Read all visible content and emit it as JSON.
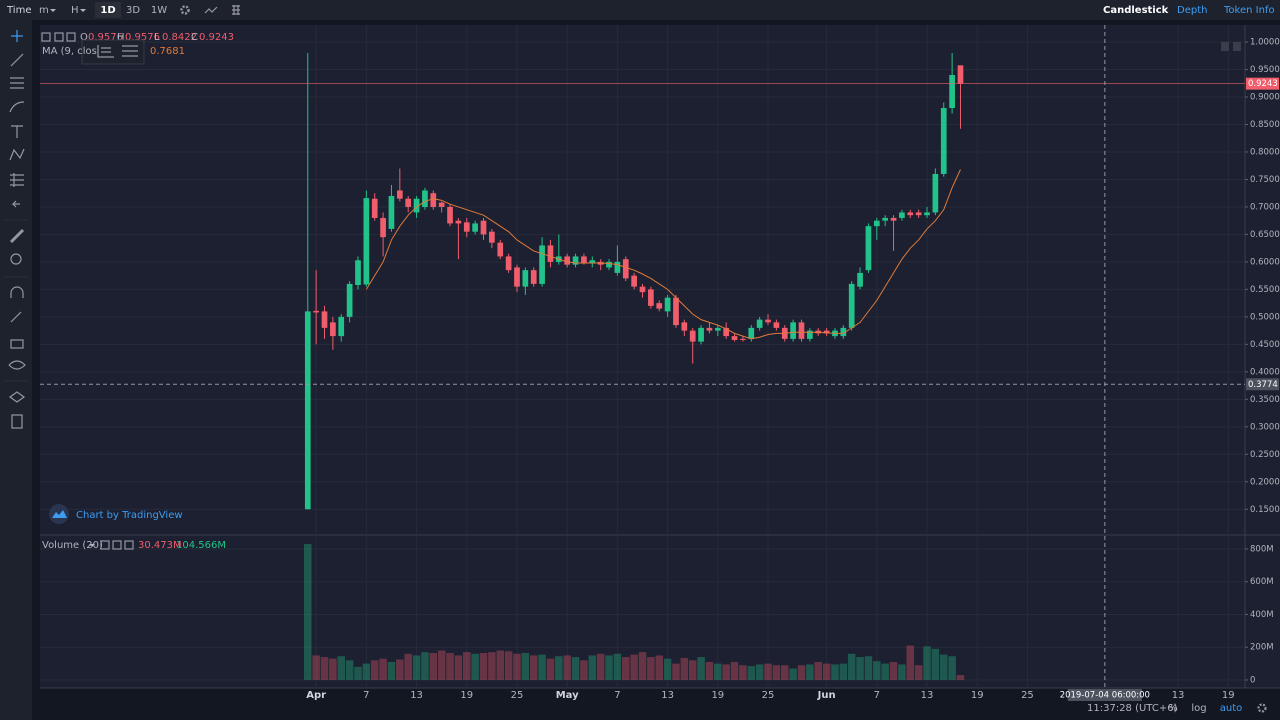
{
  "toolbar": {
    "items": [
      "Time",
      "m",
      "H",
      "1D",
      "3D",
      "1W"
    ],
    "tabs": [
      "Candlestick",
      "Depth",
      "Token Info"
    ]
  },
  "status": {
    "time": "11:37:28 (UTC+6)",
    "buttons": [
      "%",
      "log",
      "auto"
    ]
  },
  "watermark": "Chart by TradingView",
  "chart_data": [
    {
      "type": "candlestick",
      "ohlc_labels": [
        "O",
        "H",
        "L",
        "C"
      ],
      "up_color": "#22c38a",
      "down_color": "#f05d6c",
      "x": [
        "2019-03-31",
        "2019-04-01",
        "2019-04-02",
        "2019-04-03",
        "2019-04-04",
        "2019-04-05",
        "2019-04-06",
        "2019-04-07",
        "2019-04-08",
        "2019-04-09",
        "2019-04-10",
        "2019-04-11",
        "2019-04-12",
        "2019-04-13",
        "2019-04-14",
        "2019-04-15",
        "2019-04-16",
        "2019-04-17",
        "2019-04-18",
        "2019-04-19",
        "2019-04-20",
        "2019-04-21",
        "2019-04-22",
        "2019-04-23",
        "2019-04-24",
        "2019-04-25",
        "2019-04-26",
        "2019-04-27",
        "2019-04-28",
        "2019-04-29",
        "2019-04-30",
        "2019-05-01",
        "2019-05-02",
        "2019-05-03",
        "2019-05-04",
        "2019-05-05",
        "2019-05-06",
        "2019-05-07",
        "2019-05-08",
        "2019-05-09",
        "2019-05-10",
        "2019-05-11",
        "2019-05-12",
        "2019-05-13",
        "2019-05-14",
        "2019-05-15",
        "2019-05-16",
        "2019-05-17",
        "2019-05-18",
        "2019-05-19",
        "2019-05-20",
        "2019-05-21",
        "2019-05-22",
        "2019-05-23",
        "2019-05-24",
        "2019-05-25",
        "2019-05-26",
        "2019-05-27",
        "2019-05-28",
        "2019-05-29",
        "2019-05-30",
        "2019-05-31",
        "2019-06-01",
        "2019-06-02",
        "2019-06-03",
        "2019-06-04",
        "2019-06-05",
        "2019-06-06",
        "2019-06-07",
        "2019-06-08",
        "2019-06-09",
        "2019-06-10",
        "2019-06-11",
        "2019-06-12",
        "2019-06-13",
        "2019-06-14",
        "2019-06-15",
        "2019-06-16",
        "2019-06-17"
      ],
      "open": [
        0.15,
        0.511,
        0.51,
        0.49,
        0.465,
        0.5,
        0.558,
        0.559,
        0.715,
        0.68,
        0.66,
        0.73,
        0.715,
        0.69,
        0.7,
        0.725,
        0.708,
        0.7,
        0.675,
        0.672,
        0.655,
        0.675,
        0.655,
        0.635,
        0.61,
        0.59,
        0.555,
        0.585,
        0.56,
        0.63,
        0.6,
        0.61,
        0.595,
        0.61,
        0.597,
        0.6,
        0.59,
        0.58,
        0.605,
        0.575,
        0.555,
        0.55,
        0.525,
        0.51,
        0.535,
        0.49,
        0.475,
        0.455,
        0.48,
        0.475,
        0.48,
        0.465,
        0.46,
        0.46,
        0.48,
        0.495,
        0.49,
        0.48,
        0.46,
        0.49,
        0.46,
        0.475,
        0.475,
        0.465,
        0.465,
        0.48,
        0.555,
        0.585,
        0.665,
        0.675,
        0.68,
        0.68,
        0.69,
        0.69,
        0.685,
        0.69,
        0.76,
        0.88,
        0.9576
      ],
      "high": [
        0.98,
        0.585,
        0.52,
        0.5,
        0.505,
        0.565,
        0.61,
        0.73,
        0.725,
        0.69,
        0.74,
        0.77,
        0.72,
        0.72,
        0.735,
        0.73,
        0.71,
        0.705,
        0.68,
        0.68,
        0.675,
        0.68,
        0.66,
        0.64,
        0.615,
        0.595,
        0.59,
        0.59,
        0.645,
        0.64,
        0.65,
        0.615,
        0.615,
        0.615,
        0.61,
        0.605,
        0.605,
        0.63,
        0.61,
        0.58,
        0.56,
        0.555,
        0.53,
        0.54,
        0.54,
        0.495,
        0.48,
        0.485,
        0.49,
        0.485,
        0.49,
        0.47,
        0.465,
        0.485,
        0.5,
        0.505,
        0.495,
        0.485,
        0.495,
        0.495,
        0.48,
        0.48,
        0.48,
        0.48,
        0.485,
        0.565,
        0.59,
        0.67,
        0.68,
        0.685,
        0.685,
        0.695,
        0.695,
        0.695,
        0.7,
        0.77,
        0.89,
        0.98,
        0.9576
      ],
      "low": [
        0.15,
        0.45,
        0.46,
        0.44,
        0.455,
        0.49,
        0.55,
        0.555,
        0.675,
        0.61,
        0.655,
        0.71,
        0.69,
        0.68,
        0.695,
        0.695,
        0.69,
        0.665,
        0.605,
        0.645,
        0.65,
        0.64,
        0.625,
        0.605,
        0.58,
        0.545,
        0.54,
        0.555,
        0.555,
        0.59,
        0.595,
        0.59,
        0.59,
        0.595,
        0.59,
        0.585,
        0.585,
        0.575,
        0.565,
        0.55,
        0.535,
        0.515,
        0.51,
        0.5,
        0.48,
        0.465,
        0.415,
        0.45,
        0.47,
        0.465,
        0.46,
        0.455,
        0.455,
        0.455,
        0.475,
        0.485,
        0.475,
        0.455,
        0.455,
        0.455,
        0.455,
        0.465,
        0.465,
        0.46,
        0.46,
        0.475,
        0.55,
        0.58,
        0.64,
        0.665,
        0.62,
        0.675,
        0.68,
        0.68,
        0.68,
        0.685,
        0.755,
        0.87,
        0.8422
      ],
      "close": [
        0.51,
        0.508,
        0.48,
        0.465,
        0.5,
        0.56,
        0.603,
        0.716,
        0.68,
        0.645,
        0.72,
        0.715,
        0.7,
        0.715,
        0.73,
        0.7,
        0.7,
        0.67,
        0.67,
        0.655,
        0.67,
        0.65,
        0.635,
        0.61,
        0.585,
        0.555,
        0.585,
        0.56,
        0.63,
        0.6,
        0.61,
        0.595,
        0.61,
        0.597,
        0.603,
        0.595,
        0.6,
        0.6,
        0.57,
        0.555,
        0.545,
        0.52,
        0.515,
        0.535,
        0.485,
        0.475,
        0.455,
        0.48,
        0.475,
        0.48,
        0.465,
        0.458,
        0.458,
        0.48,
        0.495,
        0.49,
        0.48,
        0.46,
        0.49,
        0.46,
        0.475,
        0.47,
        0.47,
        0.475,
        0.48,
        0.56,
        0.58,
        0.665,
        0.675,
        0.68,
        0.675,
        0.69,
        0.685,
        0.685,
        0.69,
        0.76,
        0.88,
        0.94,
        0.9243
      ],
      "series": [
        {
          "name": "MA (9, clos",
          "color": "#e07a3a",
          "values": [
            null,
            null,
            null,
            null,
            null,
            null,
            null,
            0.55,
            0.575,
            0.6,
            0.64,
            0.665,
            0.685,
            0.7,
            0.71,
            0.715,
            0.712,
            0.705,
            0.7,
            0.695,
            0.69,
            0.685,
            0.675,
            0.665,
            0.655,
            0.64,
            0.63,
            0.62,
            0.615,
            0.61,
            0.605,
            0.6,
            0.598,
            0.598,
            0.598,
            0.598,
            0.597,
            0.595,
            0.59,
            0.585,
            0.578,
            0.57,
            0.56,
            0.55,
            0.535,
            0.52,
            0.505,
            0.495,
            0.49,
            0.485,
            0.478,
            0.47,
            0.465,
            0.46,
            0.463,
            0.468,
            0.47,
            0.47,
            0.472,
            0.472,
            0.472,
            0.472,
            0.471,
            0.47,
            0.47,
            0.48,
            0.49,
            0.51,
            0.53,
            0.555,
            0.58,
            0.605,
            0.625,
            0.64,
            0.66,
            0.675,
            0.695,
            0.735,
            0.7681
          ]
        }
      ],
      "xlim": [
        "2019-02-27",
        "2019-07-21"
      ],
      "xticks": [
        {
          "value": "2019-04-01",
          "label": "Apr"
        },
        {
          "value": "2019-04-07",
          "label": "7"
        },
        {
          "value": "2019-04-13",
          "label": "13"
        },
        {
          "value": "2019-04-19",
          "label": "19"
        },
        {
          "value": "2019-04-25",
          "label": "25"
        },
        {
          "value": "2019-05-01",
          "label": "May"
        },
        {
          "value": "2019-05-07",
          "label": "7"
        },
        {
          "value": "2019-05-13",
          "label": "13"
        },
        {
          "value": "2019-05-19",
          "label": "19"
        },
        {
          "value": "2019-05-25",
          "label": "25"
        },
        {
          "value": "2019-06-01",
          "label": "Jun"
        },
        {
          "value": "2019-06-07",
          "label": "7"
        },
        {
          "value": "2019-06-13",
          "label": "13"
        },
        {
          "value": "2019-06-19",
          "label": "19"
        },
        {
          "value": "2019-06-25",
          "label": "25"
        },
        {
          "value": "2019-07-13",
          "label": "13"
        },
        {
          "value": "2019-07-19",
          "label": "19"
        }
      ],
      "ylim": [
        0.105,
        1.031
      ],
      "yticks": [
        {
          "value": 0.15,
          "label": "0.1500"
        },
        {
          "value": 0.2,
          "label": "0.2000"
        },
        {
          "value": 0.25,
          "label": "0.2500"
        },
        {
          "value": 0.3,
          "label": "0.3000"
        },
        {
          "value": 0.35,
          "label": "0.3500"
        },
        {
          "value": 0.4,
          "label": "0.4000"
        },
        {
          "value": 0.45,
          "label": "0.4500"
        },
        {
          "value": 0.5,
          "label": "0.5000"
        },
        {
          "value": 0.55,
          "label": "0.5500"
        },
        {
          "value": 0.6,
          "label": "0.6000"
        },
        {
          "value": 0.65,
          "label": "0.6500"
        },
        {
          "value": 0.7,
          "label": "0.7000"
        },
        {
          "value": 0.75,
          "label": "0.7500"
        },
        {
          "value": 0.8,
          "label": "0.8000"
        },
        {
          "value": 0.85,
          "label": "0.8500"
        },
        {
          "value": 0.9,
          "label": "0.9000"
        },
        {
          "value": 0.95,
          "label": "0.9500"
        },
        {
          "value": 1,
          "label": "1.0000"
        }
      ],
      "grid": true,
      "crosshair": {
        "price": 0.3774,
        "time": "2019-07-04 06:00:00"
      }
    },
    {
      "type": "bar",
      "title": "Volume (20)",
      "legend_values": [
        "30.473M",
        "104.566M"
      ],
      "values": [
        830,
        150,
        140,
        130,
        145,
        120,
        80,
        100,
        120,
        130,
        110,
        125,
        160,
        150,
        170,
        165,
        180,
        165,
        150,
        170,
        160,
        165,
        170,
        180,
        175,
        160,
        165,
        150,
        155,
        130,
        145,
        150,
        140,
        120,
        150,
        160,
        150,
        160,
        140,
        155,
        170,
        140,
        150,
        130,
        100,
        135,
        120,
        140,
        110,
        100,
        95,
        110,
        90,
        85,
        95,
        100,
        90,
        90,
        70,
        90,
        95,
        110,
        100,
        95,
        100,
        160,
        140,
        145,
        115,
        100,
        110,
        95,
        210,
        90,
        205,
        190,
        155,
        145,
        30.473
      ],
      "ylim": [
        -49,
        873
      ],
      "yticks": [
        0,
        {
          "value": 200,
          "label": "200M"
        },
        {
          "value": 400,
          "label": "400M"
        },
        {
          "value": 600,
          "label": "600M"
        },
        {
          "value": 800,
          "label": "800M"
        }
      ],
      "grid": true
    }
  ]
}
